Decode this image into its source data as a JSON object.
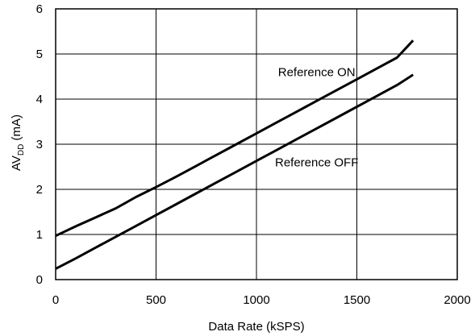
{
  "chart_data": {
    "type": "line",
    "title": "",
    "xlabel": "Data Rate (kSPS)",
    "ylabel": {
      "prefix": "AV",
      "subscript": "DD",
      "suffix": " (mA)"
    },
    "xlim": [
      0,
      2000
    ],
    "ylim": [
      0,
      6
    ],
    "xticks": [
      "0",
      "500",
      "1000",
      "1500",
      "2000"
    ],
    "yticks": [
      "0",
      "1",
      "2",
      "3",
      "4",
      "5",
      "6"
    ],
    "grid": true,
    "legend": "none",
    "series": [
      {
        "name": "Reference ON",
        "x": [
          0,
          100,
          200,
          300,
          400,
          500,
          600,
          700,
          800,
          900,
          1000,
          1100,
          1200,
          1300,
          1400,
          1500,
          1600,
          1700,
          1780
        ],
        "y": [
          0.97,
          1.18,
          1.38,
          1.58,
          1.83,
          2.05,
          2.28,
          2.52,
          2.76,
          3.0,
          3.24,
          3.48,
          3.72,
          3.96,
          4.2,
          4.44,
          4.68,
          4.92,
          5.3
        ]
      },
      {
        "name": "Reference OFF",
        "x": [
          0,
          100,
          200,
          300,
          400,
          500,
          600,
          700,
          800,
          900,
          1000,
          1100,
          1200,
          1300,
          1400,
          1500,
          1600,
          1700,
          1780
        ],
        "y": [
          0.24,
          0.47,
          0.71,
          0.95,
          1.19,
          1.43,
          1.67,
          1.91,
          2.15,
          2.39,
          2.63,
          2.87,
          3.11,
          3.35,
          3.59,
          3.83,
          4.07,
          4.31,
          4.54
        ]
      }
    ],
    "annotations": [
      {
        "text": "Reference ON",
        "x": 1300,
        "y": 4.6
      },
      {
        "text": "Reference OFF",
        "x": 1300,
        "y": 2.6
      }
    ]
  }
}
